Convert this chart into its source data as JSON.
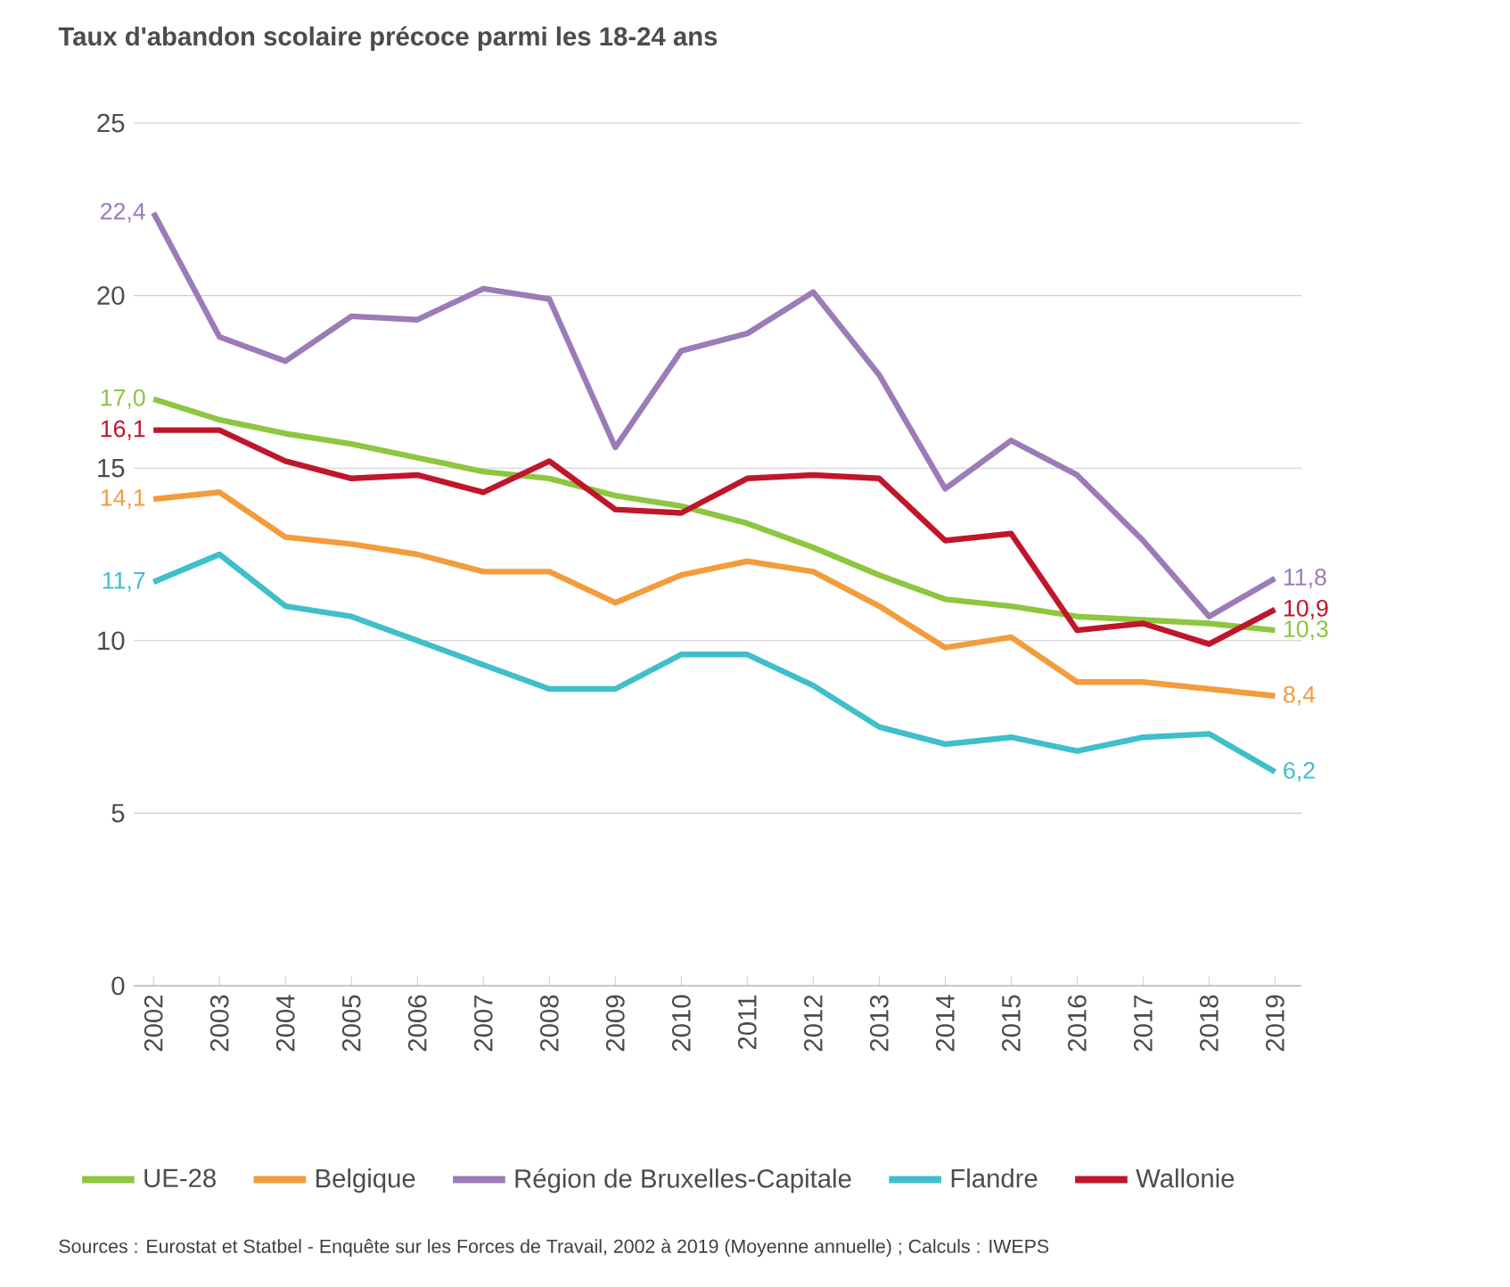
{
  "chart_data": {
    "type": "line",
    "title": "Taux d'abandon scolaire précoce parmi les 18-24 ans",
    "categories": [
      "2002",
      "2003",
      "2004",
      "2005",
      "2006",
      "2007",
      "2008",
      "2009",
      "2010",
      "2011",
      "2012",
      "2013",
      "2014",
      "2015",
      "2016",
      "2017",
      "2018",
      "2019"
    ],
    "series": [
      {
        "name": "UE-28",
        "color": "#8dc63f",
        "values": [
          17.0,
          16.4,
          16.0,
          15.7,
          15.3,
          14.9,
          14.7,
          14.2,
          13.9,
          13.4,
          12.7,
          11.9,
          11.2,
          11.0,
          10.7,
          10.6,
          10.5,
          10.3
        ],
        "value_labels": [
          "17,0",
          null,
          null,
          null,
          null,
          null,
          null,
          null,
          null,
          null,
          null,
          null,
          null,
          null,
          null,
          null,
          null,
          "10,3"
        ]
      },
      {
        "name": "Belgique",
        "color": "#f39c3c",
        "values": [
          14.1,
          14.3,
          13.0,
          12.8,
          12.5,
          12.0,
          12.0,
          11.1,
          11.9,
          12.3,
          12.0,
          11.0,
          9.8,
          10.1,
          8.8,
          8.8,
          8.6,
          8.4
        ],
        "value_labels": [
          "14,1",
          null,
          null,
          null,
          null,
          null,
          null,
          null,
          null,
          null,
          null,
          null,
          null,
          null,
          null,
          null,
          null,
          "8,4"
        ]
      },
      {
        "name": "Région de Bruxelles-Capitale",
        "color": "#9b7bb8",
        "values": [
          22.4,
          18.8,
          18.1,
          19.4,
          19.3,
          20.2,
          19.9,
          15.6,
          18.4,
          18.9,
          20.1,
          17.7,
          14.4,
          15.8,
          14.8,
          12.9,
          10.7,
          11.8
        ],
        "value_labels": [
          "22,4",
          null,
          null,
          null,
          null,
          null,
          null,
          null,
          null,
          null,
          null,
          null,
          null,
          null,
          null,
          null,
          null,
          "11,8"
        ]
      },
      {
        "name": "Flandre",
        "color": "#3fbfca",
        "values": [
          11.7,
          12.5,
          11.0,
          10.7,
          10.0,
          9.3,
          8.6,
          8.6,
          9.6,
          9.6,
          8.7,
          7.5,
          7.0,
          7.2,
          6.8,
          7.2,
          7.3,
          6.2
        ],
        "value_labels": [
          "11,7",
          null,
          null,
          null,
          null,
          null,
          null,
          null,
          null,
          null,
          null,
          null,
          null,
          null,
          null,
          null,
          null,
          "6,2"
        ]
      },
      {
        "name": "Wallonie",
        "color": "#c0162c",
        "values": [
          16.1,
          16.1,
          15.2,
          14.7,
          14.8,
          14.3,
          15.2,
          13.8,
          13.7,
          14.7,
          14.8,
          14.7,
          12.9,
          13.1,
          10.3,
          10.5,
          9.9,
          10.9
        ],
        "value_labels": [
          "16,1",
          null,
          null,
          null,
          null,
          null,
          null,
          null,
          null,
          null,
          null,
          null,
          null,
          null,
          null,
          null,
          null,
          "10,9"
        ]
      }
    ],
    "ylim": [
      0,
      25
    ],
    "yticks": [
      0,
      5,
      10,
      15,
      20,
      25
    ],
    "grid": "y",
    "legend": "bottom",
    "line_style": "solid",
    "marker": "none",
    "annotations": [
      "Sources : Eurostat et Statbel - Enquête sur les Forces de Travail, 2002 à 2019 (Moyenne annuelle) ; Calculs : IWEPS"
    ]
  }
}
